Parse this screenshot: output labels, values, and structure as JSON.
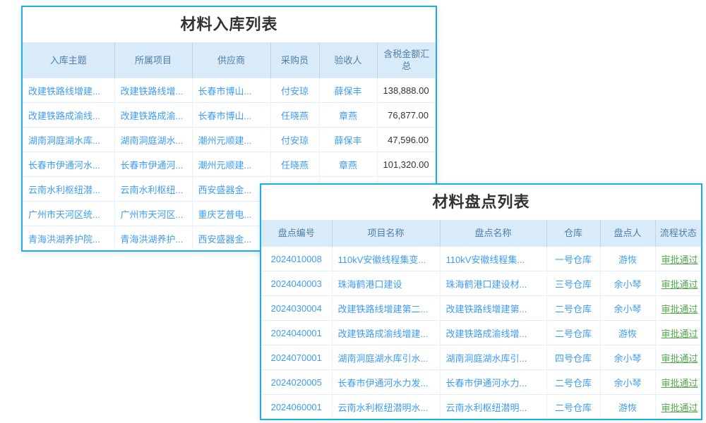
{
  "colors": {
    "card_border": "#21aae8",
    "header_bg": "#d9ebf8",
    "header_text": "#4f7ea9",
    "link_text": "#3e9cf3",
    "amount_text": "#333333",
    "status_green": "#52a74e"
  },
  "inbound_table": {
    "title": "材料入库列表",
    "columns": [
      "入库主题",
      "所属项目",
      "供应商",
      "采购员",
      "验收人",
      "含税金额汇总"
    ],
    "rows": [
      [
        "改建铁路线增建...",
        "改建铁路线增...",
        "长春市博山...",
        "付安琼",
        "薛保丰",
        "138,888.00"
      ],
      [
        "改建铁路成渝线...",
        "改建铁路成渝...",
        "长春市博山...",
        "任晓燕",
        "章燕",
        "76,877.00"
      ],
      [
        "湖南洞庭湖水库...",
        "湖南洞庭湖水...",
        "潮州元顺建...",
        "付安琼",
        "薛保丰",
        "47,596.00"
      ],
      [
        "长春市伊通河水...",
        "长春市伊通河...",
        "潮州元顺建...",
        "任晓燕",
        "章燕",
        "101,320.00"
      ],
      [
        "云南水利枢纽潜...",
        "云南水利枢纽...",
        "西安盛器金...",
        "",
        "",
        ""
      ],
      [
        "广州市天河区统...",
        "广州市天河区...",
        "重庆艺普电...",
        "",
        "",
        ""
      ],
      [
        "青海洪湖养护院...",
        "青海洪湖养护...",
        "西安盛器金...",
        "",
        "",
        ""
      ]
    ]
  },
  "stocktake_table": {
    "title": "材料盘点列表",
    "columns": [
      "盘点编号",
      "项目名称",
      "盘点名称",
      "仓库",
      "盘点人",
      "流程状态"
    ],
    "rows": [
      [
        "2024010008",
        "110kV安徽线程集变...",
        "110kV安徽线程集...",
        "一号仓库",
        "游恢",
        "审批通过"
      ],
      [
        "2024040003",
        "珠海鹤港口建设",
        "珠海鹤港口建设材...",
        "三号仓库",
        "余小琴",
        "审批通过"
      ],
      [
        "2024030004",
        "改建铁路线增建第二...",
        "改建铁路线增建第...",
        "二号仓库",
        "余小琴",
        "审批通过"
      ],
      [
        "2024040001",
        "改建铁路成渝线增建...",
        "改建铁路成渝线增...",
        "二号仓库",
        "游恢",
        "审批通过"
      ],
      [
        "2024070001",
        "湖南洞庭湖水库引水...",
        "湖南洞庭湖水库引...",
        "四号仓库",
        "余小琴",
        "审批通过"
      ],
      [
        "2024020005",
        "长春市伊通河水力发...",
        "长春市伊通河水力...",
        "二号仓库",
        "余小琴",
        "审批通过"
      ],
      [
        "2024060001",
        "云南水利枢纽潜明水...",
        "云南水利枢纽潜明...",
        "二号仓库",
        "游恢",
        "审批通过"
      ]
    ]
  }
}
